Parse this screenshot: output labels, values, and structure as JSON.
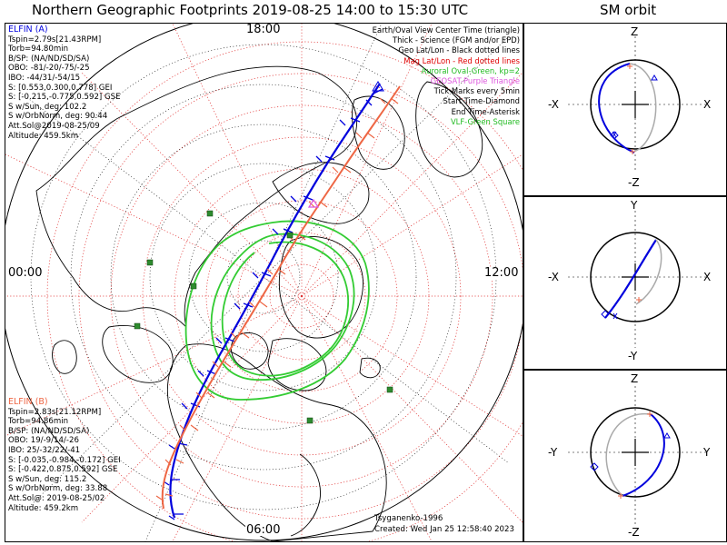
{
  "header": {
    "title": "Northern Geographic Footprints 2019-08-25 14:00 to 15:30 UTC",
    "orbit_title": "SM orbit"
  },
  "time_labels": {
    "top": "18:00",
    "left": "00:00",
    "right": "12:00",
    "bottom": "06:00"
  },
  "legend": [
    {
      "text": "Earth/Oval View Center Time (triangle)",
      "color": "#000000"
    },
    {
      "text": "Thick - Science (FGM and/or EPD)",
      "color": "#000000"
    },
    {
      "text": "Geo Lat/Lon - Black dotted lines",
      "color": "#000000"
    },
    {
      "text": "Mag Lat/Lon - Red dotted lines",
      "color": "#e00000"
    },
    {
      "text": "Auroral Oval-Green, kp=2",
      "color": "#22bb22"
    },
    {
      "text": "GEOSAT-Purple Triangle",
      "color": "#dd55dd"
    },
    {
      "text": "Tick Marks every 5min",
      "color": "#000000"
    },
    {
      "text": "Start Time-Diamond",
      "color": "#000000"
    },
    {
      "text": "End Time-Asterisk",
      "color": "#000000"
    },
    {
      "text": "VLF-Green Square",
      "color": "#22bb22"
    }
  ],
  "elfin_a": {
    "name": "ELFIN (A)",
    "color": "#0000dd",
    "lines": [
      "Tspin=2.79s[21.43RPM]",
      "Torb=94.80min",
      "B/SP: (NA/ND/SD/SA)",
      "OBO: -81/-20/-75/-25",
      "IBO: -44/31/-54/15",
      "S: [0.553,0.300,0.778] GEI",
      "S: [-0.215,-0.775,0.592] GSE",
      "S w/Sun, deg: 102.2",
      "S w/OrbNorm, deg: 90.44",
      "Att.Sol@2019-08-25/09",
      "Altitude: 459.5km"
    ]
  },
  "elfin_b": {
    "name": "ELFIN (B)",
    "color": "#ee6644",
    "lines": [
      "Tspin=2.83s[21.12RPM]",
      "Torb=94.86min",
      "B/SP: (NA/ND/SD/SA)",
      "OBO: 19/-9/14/-26",
      "IBO: 25/-32/22/-41",
      "S: [-0.035,-0.984,-0.172] GEI",
      "S: [-0.422,0.875,0.592] GSE",
      "S w/Sun, deg: 115.2",
      "S w/OrbNorm, deg: 33.88",
      "Att.Sol@: 2019-08-25/02",
      "Altitude: 459.2km"
    ]
  },
  "credits": {
    "author": "Tsyganenko-1996",
    "created": "Created: Wed Jan 25 12:58:40 2023"
  },
  "orbit_panels": [
    {
      "top": "Z",
      "left": "-X",
      "right": "X",
      "bottom": "-Z"
    },
    {
      "top": "Y",
      "left": "-X",
      "right": "X",
      "bottom": "-Y"
    },
    {
      "top": "Z",
      "left": "-Y",
      "right": "Y",
      "bottom": "-Z"
    }
  ],
  "colors": {
    "elfin_a": "#0000dd",
    "elfin_b": "#ee6644",
    "oval": "#33cc33",
    "mag_grid": "#e03030",
    "geo_grid": "#000000",
    "vlf": "#2e8b2e",
    "geosat": "#dd55dd"
  }
}
